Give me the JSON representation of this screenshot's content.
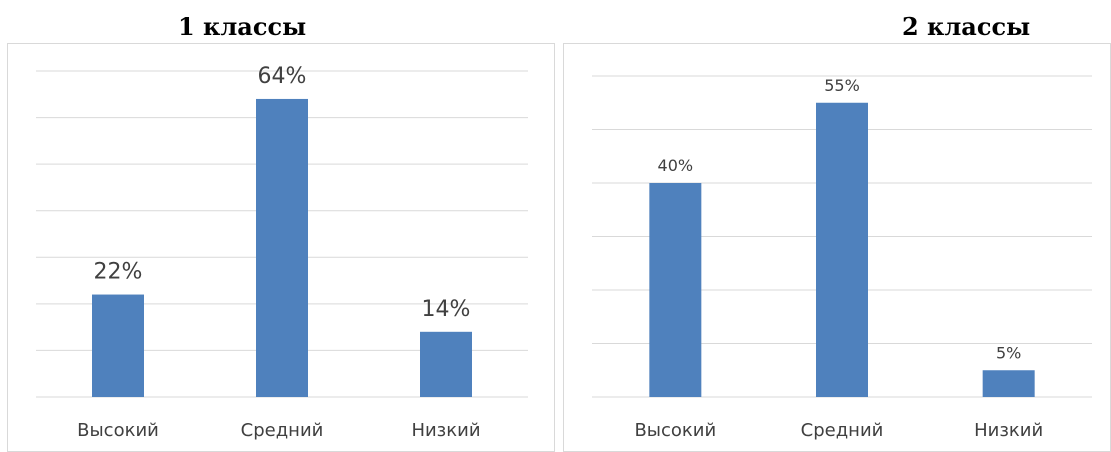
{
  "chart_data": [
    {
      "type": "bar",
      "title": "1 классы",
      "categories": [
        "Высокий",
        "Средний",
        "Низкий"
      ],
      "values": [
        22,
        64,
        14
      ],
      "data_labels": [
        "22%",
        "64%",
        "14%"
      ],
      "ylim": [
        0,
        70
      ],
      "grid": true,
      "color": "#4f81bd"
    },
    {
      "type": "bar",
      "title": "2 классы",
      "categories": [
        "Высокий",
        "Средний",
        "Низкий"
      ],
      "values": [
        40,
        55,
        5
      ],
      "data_labels": [
        "40%",
        "55%",
        "5%"
      ],
      "ylim": [
        0,
        60
      ],
      "grid": true,
      "color": "#4f81bd"
    }
  ]
}
